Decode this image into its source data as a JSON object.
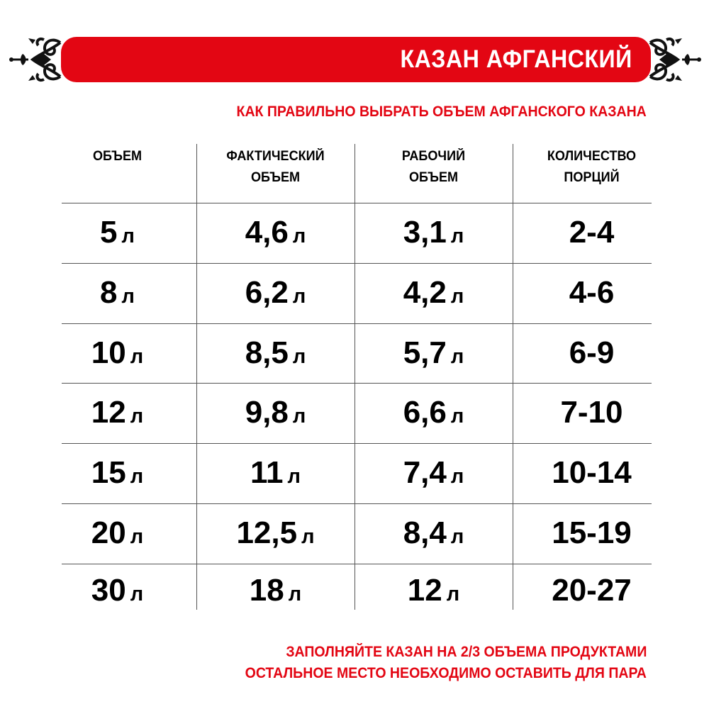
{
  "banner": {
    "title": "КАЗАН АФГАНСКИЙ",
    "color": "#e30613"
  },
  "subtitle": "КАК ПРАВИЛЬНО ВЫБРАТЬ ОБЪЕМ АФГАНСКОГО КАЗАНА",
  "table": {
    "headers": [
      [
        "ОБЪЕМ",
        ""
      ],
      [
        "ФАКТИЧЕСКИЙ",
        "ОБЪЕМ"
      ],
      [
        "РАБОЧИЙ",
        "ОБЪЕМ"
      ],
      [
        "КОЛИЧЕСТВО",
        "ПОРЦИЙ"
      ]
    ],
    "unit": "л",
    "rows": [
      [
        "5",
        "4,6",
        "3,1",
        "2-4"
      ],
      [
        "8",
        "6,2",
        "4,2",
        "4-6"
      ],
      [
        "10",
        "8,5",
        "5,7",
        "6-9"
      ],
      [
        "12",
        "9,8",
        "6,6",
        "7-10"
      ],
      [
        "15",
        "11",
        "7,4",
        "10-14"
      ],
      [
        "20",
        "12,5",
        "8,4",
        "15-19"
      ],
      [
        "30",
        "18",
        "12",
        "20-27"
      ]
    ]
  },
  "footer": [
    "ЗАПОЛНЯЙТЕ КАЗАН НА 2/3 ОБЪЕМА ПРОДУКТАМИ",
    "ОСТАЛЬНОЕ МЕСТО НЕОБХОДИМО ОСТАВИТЬ ДЛЯ ПАРА"
  ],
  "icons": {
    "ornament": "scroll-ornament-icon"
  }
}
